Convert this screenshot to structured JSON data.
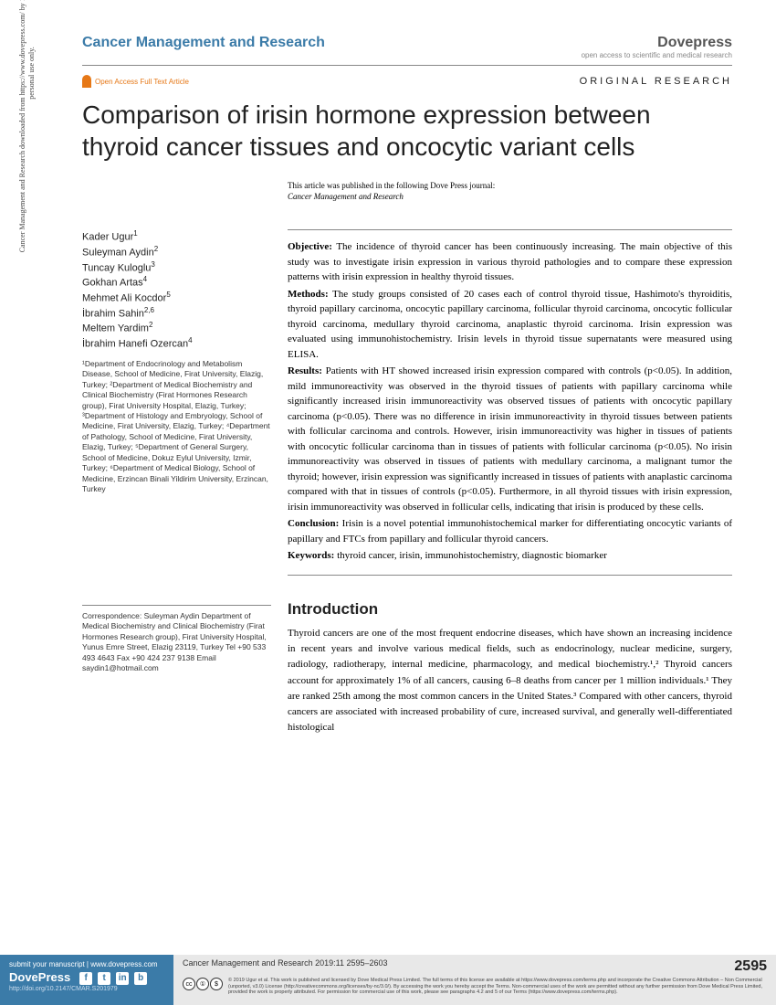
{
  "header": {
    "journal": "Cancer Management and Research",
    "publisher": "Dovepress",
    "publisher_tagline": "open access to scientific and medical research",
    "open_access": "Open Access Full Text Article",
    "article_type": "ORIGINAL RESEARCH"
  },
  "vertical_citation": "Cancer Management and Research downloaded from https://www.dovepress.com/ by 178.171.88.140 on 29-Mar-2019\nFor personal use only.",
  "title": "Comparison of irisin hormone expression between thyroid cancer tissues and oncocytic variant cells",
  "pub_note_line1": "This article was published in the following Dove Press journal:",
  "pub_note_line2": "Cancer Management and Research",
  "authors": [
    {
      "name": "Kader Ugur",
      "sup": "1"
    },
    {
      "name": "Suleyman Aydin",
      "sup": "2"
    },
    {
      "name": "Tuncay Kuloglu",
      "sup": "3"
    },
    {
      "name": "Gokhan Artas",
      "sup": "4"
    },
    {
      "name": "Mehmet Ali Kocdor",
      "sup": "5"
    },
    {
      "name": "İbrahim Sahin",
      "sup": "2,6"
    },
    {
      "name": "Meltem Yardim",
      "sup": "2"
    },
    {
      "name": "İbrahim Hanefi Ozercan",
      "sup": "4"
    }
  ],
  "affiliations": "¹Department of Endocrinology and Metabolism Disease, School of Medicine, Firat University, Elazig, Turkey; ²Department of Medical Biochemistry and Clinical Biochemistry (Firat Hormones Research group), Firat University Hospital, Elazig, Turkey; ³Department of Histology and Embryology, School of Medicine, Firat University, Elazig, Turkey; ⁴Department of Pathology, School of Medicine, Firat University, Elazig, Turkey; ⁵Department of General Surgery, School of Medicine, Dokuz Eylul University, Izmir, Turkey; ⁶Department of Medical Biology, School of Medicine, Erzincan Binali Yildirim University, Erzincan, Turkey",
  "correspondence": "Correspondence: Suleyman Aydin\nDepartment of Medical Biochemistry and Clinical Biochemistry (Firat Hormones Research group), Firat University Hospital, Yunus Emre Street, Elazig 23119, Turkey\nTel +90 533 493 4643\nFax +90 424 237 9138\nEmail saydin1@hotmail.com",
  "abstract": {
    "objective_label": "Objective:",
    "objective": " The incidence of thyroid cancer has been continuously increasing. The main objective of this study was to investigate irisin expression in various thyroid pathologies and to compare these expression patterns with irisin expression in healthy thyroid tissues.",
    "methods_label": "Methods:",
    "methods": " The study groups consisted of 20 cases each of control thyroid tissue, Hashimoto's thyroiditis, thyroid papillary carcinoma, oncocytic papillary carcinoma, follicular thyroid carcinoma, oncocytic follicular thyroid carcinoma, medullary thyroid carcinoma, anaplastic thyroid carcinoma. Irisin expression was evaluated using immunohistochemistry. Irisin levels in thyroid tissue supernatants were measured using ELISA.",
    "results_label": "Results:",
    "results": " Patients with HT showed increased irisin expression compared with controls (p<0.05). In addition, mild immunoreactivity was observed in the thyroid tissues of patients with papillary carcinoma while significantly increased irisin immunoreactivity was observed tissues of patients with oncocytic papillary carcinoma (p<0.05). There was no difference in irisin immunoreactivity in thyroid tissues between patients with follicular carcinoma and controls. However, irisin immunoreactivity was higher in tissues of patients with oncocytic follicular carcinoma than in tissues of patients with follicular carcinoma (p<0.05). No irisin immunoreactivity was observed in tissues of patients with medullary carcinoma, a malignant tumor the thyroid; however, irisin expression was significantly increased in tissues of patients with anaplastic carcinoma compared with that in tissues of controls (p<0.05). Furthermore, in all thyroid tissues with irisin expression, irisin immunoreactivity was observed in follicular cells, indicating that irisin is produced by these cells.",
    "conclusion_label": "Conclusion:",
    "conclusion": " Irisin is a novel potential immunohistochemical marker for differentiating oncocytic variants of papillary and FTCs from papillary and follicular thyroid cancers.",
    "keywords_label": "Keywords:",
    "keywords": " thyroid cancer, irisin, immunohistochemistry, diagnostic biomarker"
  },
  "intro_heading": "Introduction",
  "intro_text": "Thyroid cancers are one of the most frequent endocrine diseases, which have shown an increasing incidence in recent years and involve various medical fields, such as endocrinology, nuclear medicine, surgery, radiology, radiotherapy, internal medicine, pharmacology, and medical biochemistry.¹,² Thyroid cancers account for approximately 1% of all cancers, causing 6–8 deaths from cancer per 1 million individuals.¹ They are ranked 25th among the most common cancers in the United States.³ Compared with other cancers, thyroid cancers are associated with increased probability of cure, increased survival, and generally well-differentiated histological",
  "footer": {
    "submit": "submit your manuscript | www.dovepress.com",
    "brand": "DovePress",
    "doi": "http://doi.org/10.2147/CMAR.S201979",
    "citation": "Cancer Management and Research 2019:11 2595–2603",
    "page": "2595",
    "copyright": "© 2019 Ugur et al. This work is published and licensed by Dove Medical Press Limited. The full terms of this license are available at https://www.dovepress.com/terms.php and incorporate the Creative Commons Attribution – Non Commercial (unported, v3.0) License (http://creativecommons.org/licenses/by-nc/3.0/). By accessing the work you hereby accept the Terms. Non-commercial uses of the work are permitted without any further permission from Dove Medical Press Limited, provided the work is properly attributed. For permission for commercial use of this work, please see paragraphs 4.2 and 5 of our Terms (https://www.dovepress.com/terms.php)."
  }
}
